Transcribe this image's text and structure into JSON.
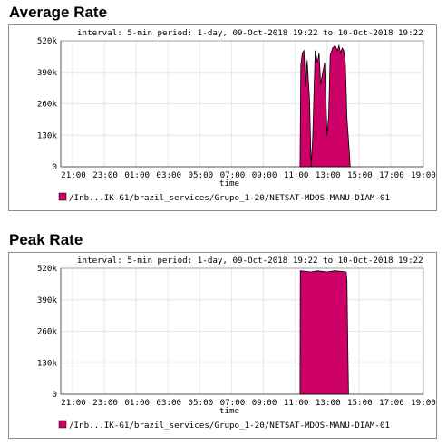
{
  "charts": [
    {
      "section_title": "Average Rate",
      "header": "interval: 5-min  period: 1-day, 09-Oct-2018 19:22 to 10-Oct-2018 19:22",
      "xlabel": "time",
      "legend": "/Inb...IK-G1/brazil_services/Grupo_1-20/NETSAT-MDOS-MANU-DIAM-01"
    },
    {
      "section_title": "Peak Rate",
      "header": "interval: 5-min  period: 1-day, 09-Oct-2018 19:22 to 10-Oct-2018 19:22",
      "xlabel": "time",
      "legend": "/Inb...IK-G1/brazil_services/Grupo_1-20/NETSAT-MDOS-MANU-DIAM-01"
    }
  ],
  "chart_data": [
    {
      "type": "area",
      "title": "Average Rate",
      "subtitle": "interval: 5-min  period: 1-day, 09-Oct-2018 19:22 to 10-Oct-2018 19:22",
      "xlabel": "time",
      "ylabel": "",
      "y_ticks": [
        "0",
        "130k",
        "260k",
        "390k",
        "520k"
      ],
      "x_ticks": [
        "21:00",
        "23:00",
        "01:00",
        "03:00",
        "05:00",
        "07:00",
        "09:00",
        "11:00",
        "13:00",
        "15:00",
        "17:00",
        "19:00"
      ],
      "ylim": [
        0,
        520000
      ],
      "grid": true,
      "color": "#cc0066",
      "series": [
        {
          "name": "/Inb...IK-G1/brazil_services/Grupo_1-20/NETSAT-MDOS-MANU-DIAM-01",
          "x_hours": [
            11.3,
            11.35,
            11.45,
            11.55,
            11.65,
            11.75,
            11.9,
            12.0,
            12.1,
            12.25,
            12.4,
            12.5,
            12.6,
            12.7,
            12.85,
            13.0,
            13.1,
            13.2,
            13.35,
            13.5,
            13.65,
            13.75,
            13.85,
            13.95,
            14.05,
            14.15,
            14.25,
            14.4,
            14.45
          ],
          "values": [
            0,
            420000,
            470000,
            480000,
            330000,
            440000,
            280000,
            0,
            120000,
            480000,
            430000,
            470000,
            340000,
            380000,
            430000,
            130000,
            210000,
            460000,
            490000,
            500000,
            480000,
            500000,
            470000,
            490000,
            480000,
            430000,
            200000,
            60000,
            0
          ]
        }
      ]
    },
    {
      "type": "area",
      "title": "Peak Rate",
      "subtitle": "interval: 5-min  period: 1-day, 09-Oct-2018 19:22 to 10-Oct-2018 19:22",
      "xlabel": "time",
      "ylabel": "",
      "y_ticks": [
        "0",
        "130k",
        "260k",
        "390k",
        "520k"
      ],
      "x_ticks": [
        "21:00",
        "23:00",
        "01:00",
        "03:00",
        "05:00",
        "07:00",
        "09:00",
        "11:00",
        "13:00",
        "15:00",
        "17:00",
        "19:00"
      ],
      "ylim": [
        0,
        520000
      ],
      "grid": true,
      "color": "#cc0066",
      "series": [
        {
          "name": "/Inb...IK-G1/brazil_services/Grupo_1-20/NETSAT-MDOS-MANU-DIAM-01",
          "x_hours": [
            11.3,
            11.32,
            12.0,
            12.4,
            13.0,
            13.5,
            14.2,
            14.25,
            14.3,
            14.35
          ],
          "values": [
            0,
            510000,
            505000,
            510000,
            505000,
            510000,
            505000,
            470000,
            230000,
            0
          ]
        }
      ]
    }
  ]
}
